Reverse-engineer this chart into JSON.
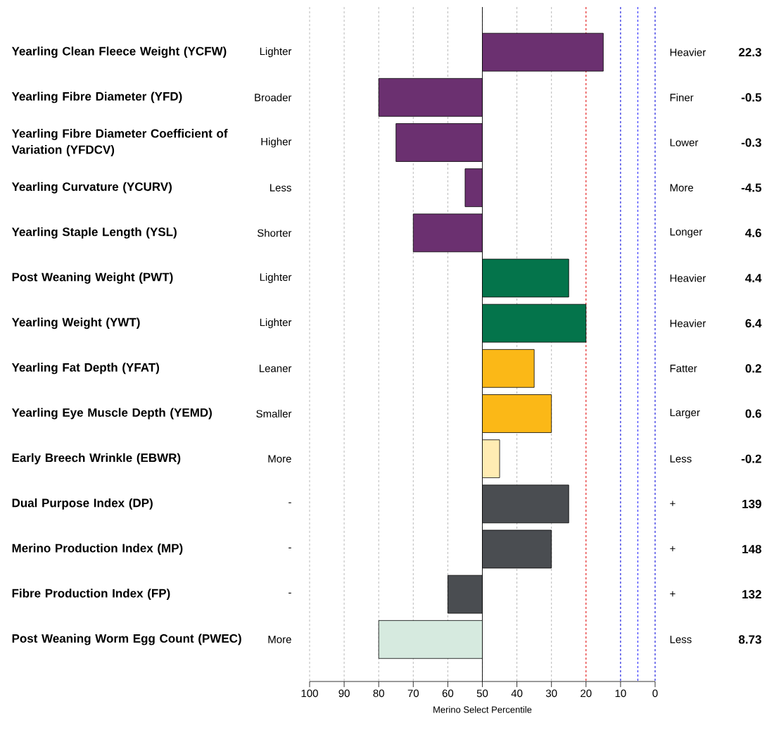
{
  "chart_data": {
    "type": "bar",
    "orientation": "horizontal",
    "xlabel": "Merino Select Percentile",
    "categories": [
      "Yearling Clean Fleece Weight (YCFW)",
      "Yearling Fibre Diameter (YFD)",
      "Yearling Fibre Diameter Coefficient of Variation (YFDCV)",
      "Yearling Curvature (YCURV)",
      "Yearling Staple Length (YSL)",
      "Post Weaning Weight (PWT)",
      "Yearling Weight (YWT)",
      "Yearling Fat Depth (YFAT)",
      "Yearling Eye Muscle Depth (YEMD)",
      "Early Breech Wrinkle (EBWR)",
      "Dual Purpose Index (DP)",
      "Merino Production Index (MP)",
      "Fibre Production Index (FP)",
      "Post Weaning Worm Egg Count (PWEC)"
    ],
    "base": [
      50,
      50,
      50,
      50,
      50,
      50,
      50,
      50,
      50,
      50,
      50,
      50,
      50,
      50
    ],
    "values": [
      -35,
      30,
      25,
      5,
      20,
      -25,
      -30,
      -15,
      -20,
      -5,
      -25,
      -20,
      10,
      30
    ],
    "colors": [
      "#6b3070",
      "#6b3070",
      "#6b3070",
      "#6b3070",
      "#6b3070",
      "#04744b",
      "#04744b",
      "#fbb817",
      "#fbb817",
      "#ffecb3",
      "#4a4d51",
      "#4a4d51",
      "#4a4d51",
      "#d6eadf"
    ],
    "xlim": [
      100,
      0
    ],
    "xticks": [
      100,
      90,
      80,
      70,
      60,
      50,
      40,
      30,
      20,
      10,
      0
    ],
    "grid": "x",
    "ref_lines": [
      {
        "axis": "x",
        "value": 50,
        "color": "#000000",
        "line_style": "solid"
      },
      {
        "axis": "x",
        "value": 20,
        "color": "#ff0000",
        "line_style": "dashed"
      },
      {
        "axis": "x",
        "value": 10,
        "color": "#0000ff",
        "line_style": "dashed"
      },
      {
        "axis": "x",
        "value": 5,
        "color": "#0000ff",
        "line_style": "dashed"
      },
      {
        "axis": "x",
        "value": 0,
        "color": "#0000ff",
        "line_style": "dashed"
      }
    ],
    "annotations": [
      "Lighter",
      "Heavier",
      "22.3",
      "Broader",
      "Finer",
      "-0.5",
      "Higher",
      "Lower",
      "-0.3",
      "Less",
      "More",
      "-4.5",
      "Shorter",
      "Longer",
      "4.6",
      "Lighter",
      "Heavier",
      "4.4",
      "Lighter",
      "Heavier",
      "6.4",
      "Leaner",
      "Fatter",
      "0.2",
      "Smaller",
      "Larger",
      "0.6",
      "More",
      "Less",
      "-0.2",
      "-",
      "+",
      "139",
      "-",
      "+",
      "148",
      "-",
      "+",
      "132",
      "More",
      "Less",
      "8.73"
    ]
  }
}
